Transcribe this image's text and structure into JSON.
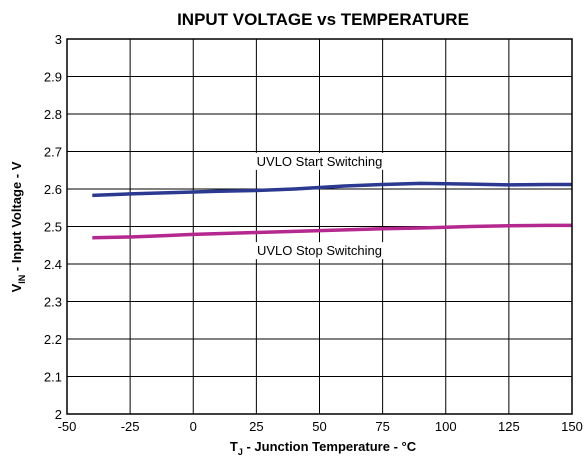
{
  "chart_data": {
    "type": "line",
    "title": "INPUT VOLTAGE vs TEMPERATURE",
    "xlabel": {
      "main": "T",
      "sub": "J",
      "rest": " - Junction Temperature - °C"
    },
    "ylabel": {
      "main": "V",
      "sub": "IN",
      "rest": " - Input Voltage - V"
    },
    "xlim": [
      -50,
      150
    ],
    "ylim": [
      2,
      3
    ],
    "x_ticks": [
      -50,
      -25,
      0,
      25,
      50,
      75,
      100,
      125,
      150
    ],
    "x_tick_labels": [
      "-50",
      "-25",
      "0",
      "25",
      "50",
      "75",
      "100",
      "125",
      "150"
    ],
    "y_ticks": [
      2,
      2.1,
      2.2,
      2.3,
      2.4,
      2.5,
      2.6,
      2.7,
      2.8,
      2.9,
      3
    ],
    "y_tick_labels": [
      "2",
      "2.1",
      "2.2",
      "2.3",
      "2.4",
      "2.5",
      "2.6",
      "2.7",
      "2.8",
      "2.9",
      "3"
    ],
    "grid": true,
    "series": [
      {
        "name": "UVLO Start Switching",
        "color": "#2b3990",
        "x": [
          -40,
          -25,
          -10,
          0,
          10,
          25,
          40,
          50,
          60,
          75,
          90,
          100,
          110,
          125,
          140,
          150
        ],
        "y": [
          2.583,
          2.587,
          2.59,
          2.592,
          2.594,
          2.596,
          2.6,
          2.604,
          2.608,
          2.612,
          2.615,
          2.614,
          2.613,
          2.611,
          2.612,
          2.612
        ]
      },
      {
        "name": "UVLO Stop Switching",
        "color": "#b5288f",
        "x": [
          -40,
          -25,
          -10,
          0,
          10,
          25,
          40,
          50,
          60,
          75,
          90,
          100,
          110,
          125,
          140,
          150
        ],
        "y": [
          2.47,
          2.472,
          2.476,
          2.479,
          2.481,
          2.484,
          2.487,
          2.489,
          2.491,
          2.494,
          2.496,
          2.498,
          2.5,
          2.502,
          2.503,
          2.503
        ]
      }
    ],
    "annotations": [
      {
        "text": "UVLO Start Switching",
        "x": 50,
        "y": 2.675
      },
      {
        "text": "UVLO Stop Switching",
        "x": 50,
        "y": 2.437
      }
    ]
  }
}
